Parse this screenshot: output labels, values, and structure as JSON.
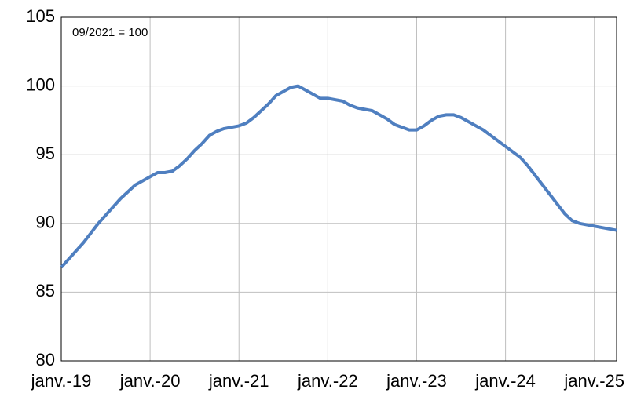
{
  "chart_data": {
    "type": "line",
    "annotation": "09/2021 = 100",
    "categories": [
      "janv.-19",
      null,
      null,
      null,
      null,
      null,
      null,
      null,
      null,
      null,
      null,
      null,
      "janv.-20",
      null,
      null,
      null,
      null,
      null,
      null,
      null,
      null,
      null,
      null,
      null,
      "janv.-21",
      null,
      null,
      null,
      null,
      null,
      null,
      null,
      null,
      null,
      null,
      null,
      "janv.-22",
      null,
      null,
      null,
      null,
      null,
      null,
      null,
      null,
      null,
      null,
      null,
      "janv.-23",
      null,
      null,
      null,
      null,
      null,
      null,
      null,
      null,
      null,
      null,
      null,
      "janv.-24",
      null,
      null,
      null,
      null,
      null,
      null,
      null,
      null,
      null,
      null,
      null,
      "janv.-25",
      null,
      null,
      null
    ],
    "series": [
      {
        "color": "#4f7fc0",
        "values": [
          86.8,
          87.4,
          88.0,
          88.6,
          89.3,
          90.0,
          90.6,
          91.2,
          91.8,
          92.3,
          92.8,
          93.1,
          93.4,
          93.7,
          93.7,
          93.8,
          94.2,
          94.7,
          95.3,
          95.8,
          96.4,
          96.7,
          96.9,
          97.0,
          97.1,
          97.3,
          97.7,
          98.2,
          98.7,
          99.3,
          99.6,
          99.9,
          100.0,
          99.7,
          99.4,
          99.1,
          99.1,
          99.0,
          98.9,
          98.6,
          98.4,
          98.3,
          98.2,
          97.9,
          97.6,
          97.2,
          97.0,
          96.8,
          96.8,
          97.1,
          97.5,
          97.8,
          97.9,
          97.9,
          97.7,
          97.4,
          97.1,
          96.8,
          96.4,
          96.0,
          95.6,
          95.2,
          94.8,
          94.2,
          93.5,
          92.8,
          92.1,
          91.4,
          90.7,
          90.2,
          90.0,
          89.9,
          89.8,
          89.7,
          89.6,
          89.5
        ]
      }
    ],
    "ylim": [
      80,
      105
    ],
    "yticks": [
      80,
      85,
      90,
      95,
      100,
      105
    ],
    "grid": true
  }
}
